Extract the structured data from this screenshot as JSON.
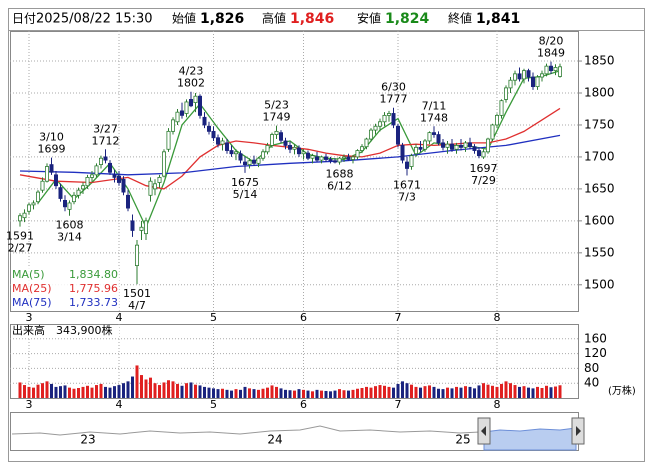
{
  "header": {
    "date_label": "日付",
    "date": "2025/08/22 15:30",
    "open_label": "始値",
    "open": "1,826",
    "high_label": "高値",
    "high": "1,846",
    "low_label": "安値",
    "low": "1,824",
    "close_label": "終値",
    "close": "1,841"
  },
  "chart_data": {
    "type": "candlestick",
    "up_color": "#2e7d32",
    "down_color": "#1a237e",
    "grid": true,
    "categories": [
      null,
      null,
      "3",
      null,
      null,
      null,
      null,
      null,
      null,
      null,
      null,
      null,
      null,
      null,
      null,
      null,
      null,
      null,
      null,
      null,
      null,
      null,
      "4",
      null,
      null,
      null,
      null,
      null,
      null,
      null,
      null,
      null,
      null,
      null,
      null,
      null,
      null,
      null,
      null,
      null,
      null,
      null,
      null,
      "5",
      null,
      null,
      null,
      null,
      null,
      null,
      null,
      null,
      null,
      null,
      null,
      null,
      null,
      null,
      null,
      null,
      null,
      null,
      null,
      "6",
      null,
      null,
      null,
      null,
      null,
      null,
      null,
      null,
      null,
      null,
      null,
      null,
      null,
      null,
      null,
      null,
      null,
      null,
      null,
      null,
      "7",
      null,
      null,
      null,
      null,
      null,
      null,
      null,
      null,
      null,
      null,
      null,
      null,
      null,
      null,
      null,
      null,
      null,
      null,
      null,
      null,
      null,
      "8",
      null,
      null,
      null,
      null,
      null,
      null,
      null,
      null,
      null,
      null,
      null,
      null,
      null,
      null
    ],
    "open": [
      1600,
      1605,
      1615,
      1625,
      1630,
      1648,
      1662,
      1688,
      1672,
      1652,
      1632,
      1618,
      1630,
      1640,
      1650,
      1655,
      1668,
      1672,
      1688,
      1700,
      1690,
      1672,
      1670,
      1665,
      1640,
      1600,
      1530,
      1585,
      1580,
      1640,
      1650,
      1660,
      1670,
      1712,
      1740,
      1755,
      1772,
      1768,
      1790,
      1785,
      1795,
      1762,
      1748,
      1740,
      1730,
      1720,
      1722,
      1710,
      1705,
      1705,
      1692,
      1688,
      1695,
      1690,
      1698,
      1708,
      1718,
      1735,
      1738,
      1725,
      1718,
      1712,
      1714,
      1705,
      1706,
      1698,
      1700,
      1695,
      1700,
      1696,
      1694,
      1692,
      1698,
      1700,
      1696,
      1700,
      1710,
      1716,
      1728,
      1742,
      1748,
      1755,
      1765,
      1768,
      1748,
      1718,
      1692,
      1685,
      1705,
      1715,
      1712,
      1725,
      1738,
      1735,
      1722,
      1715,
      1720,
      1712,
      1718,
      1715,
      1722,
      1716,
      1710,
      1700,
      1708,
      1728,
      1750,
      1765,
      1790,
      1808,
      1820,
      1830,
      1822,
      1835,
      1825,
      1810,
      1825,
      1830,
      1842,
      1835,
      1826
    ],
    "high": [
      1612,
      1618,
      1628,
      1632,
      1648,
      1668,
      1690,
      1699,
      1678,
      1658,
      1640,
      1632,
      1645,
      1652,
      1660,
      1672,
      1678,
      1690,
      1702,
      1712,
      1695,
      1680,
      1678,
      1670,
      1648,
      1610,
      1570,
      1600,
      1605,
      1668,
      1665,
      1672,
      1712,
      1745,
      1762,
      1775,
      1785,
      1790,
      1802,
      1800,
      1798,
      1770,
      1755,
      1748,
      1735,
      1730,
      1728,
      1718,
      1712,
      1710,
      1700,
      1698,
      1702,
      1700,
      1712,
      1722,
      1738,
      1749,
      1742,
      1730,
      1724,
      1720,
      1718,
      1712,
      1710,
      1705,
      1708,
      1702,
      1705,
      1700,
      1698,
      1700,
      1704,
      1705,
      1702,
      1712,
      1720,
      1730,
      1745,
      1752,
      1760,
      1770,
      1772,
      1777,
      1752,
      1722,
      1700,
      1705,
      1720,
      1725,
      1728,
      1740,
      1748,
      1740,
      1728,
      1725,
      1728,
      1722,
      1728,
      1725,
      1730,
      1720,
      1715,
      1712,
      1730,
      1752,
      1768,
      1790,
      1812,
      1825,
      1835,
      1840,
      1838,
      1838,
      1832,
      1828,
      1835,
      1846,
      1849,
      1845,
      1846
    ],
    "low": [
      1591,
      1598,
      1610,
      1618,
      1626,
      1644,
      1660,
      1672,
      1650,
      1630,
      1615,
      1608,
      1626,
      1635,
      1642,
      1650,
      1660,
      1668,
      1682,
      1690,
      1672,
      1660,
      1655,
      1640,
      1615,
      1575,
      1501,
      1570,
      1570,
      1630,
      1640,
      1652,
      1668,
      1708,
      1735,
      1750,
      1760,
      1762,
      1778,
      1770,
      1760,
      1745,
      1735,
      1725,
      1715,
      1710,
      1705,
      1700,
      1695,
      1690,
      1675,
      1682,
      1686,
      1684,
      1694,
      1704,
      1714,
      1728,
      1722,
      1712,
      1706,
      1704,
      1700,
      1696,
      1695,
      1690,
      1692,
      1690,
      1692,
      1690,
      1690,
      1688,
      1692,
      1694,
      1690,
      1696,
      1706,
      1712,
      1724,
      1735,
      1740,
      1748,
      1755,
      1745,
      1715,
      1690,
      1671,
      1680,
      1700,
      1708,
      1708,
      1720,
      1730,
      1718,
      1710,
      1705,
      1708,
      1705,
      1710,
      1708,
      1712,
      1705,
      1698,
      1697,
      1705,
      1725,
      1745,
      1760,
      1785,
      1800,
      1812,
      1818,
      1815,
      1818,
      1805,
      1805,
      1818,
      1826,
      1830,
      1828,
      1824
    ],
    "close": [
      1608,
      1612,
      1625,
      1628,
      1645,
      1662,
      1685,
      1676,
      1655,
      1635,
      1622,
      1628,
      1640,
      1648,
      1655,
      1668,
      1672,
      1686,
      1698,
      1695,
      1676,
      1668,
      1660,
      1645,
      1620,
      1585,
      1562,
      1590,
      1600,
      1662,
      1658,
      1668,
      1708,
      1740,
      1758,
      1770,
      1765,
      1786,
      1780,
      1795,
      1765,
      1750,
      1740,
      1730,
      1720,
      1725,
      1710,
      1705,
      1708,
      1695,
      1688,
      1694,
      1690,
      1698,
      1708,
      1718,
      1735,
      1740,
      1726,
      1718,
      1712,
      1715,
      1705,
      1708,
      1698,
      1702,
      1695,
      1700,
      1696,
      1694,
      1692,
      1698,
      1700,
      1696,
      1700,
      1710,
      1716,
      1728,
      1742,
      1748,
      1755,
      1765,
      1768,
      1750,
      1720,
      1695,
      1682,
      1702,
      1715,
      1712,
      1725,
      1738,
      1735,
      1722,
      1715,
      1720,
      1712,
      1718,
      1715,
      1722,
      1716,
      1710,
      1702,
      1708,
      1728,
      1750,
      1765,
      1788,
      1808,
      1820,
      1830,
      1822,
      1835,
      1825,
      1810,
      1825,
      1830,
      1842,
      1835,
      1840,
      1841
    ],
    "ylim": [
      1459,
      1897
    ],
    "yticks": [
      1500,
      1550,
      1600,
      1650,
      1700,
      1750,
      1800,
      1850
    ],
    "series": [
      {
        "name": "MA(5)",
        "color": "#3a9a3a",
        "last_label": "1,834.80",
        "x": [
          4,
          8,
          12,
          16,
          20,
          24,
          28,
          32,
          36,
          40,
          44,
          48,
          52,
          56,
          60,
          64,
          68,
          72,
          76,
          80,
          84,
          88,
          92,
          96,
          100,
          104,
          108,
          112,
          116,
          120
        ],
        "values": [
          1628,
          1665,
          1634,
          1660,
          1690,
          1650,
          1590,
          1660,
          1750,
          1783,
          1745,
          1710,
          1692,
          1718,
          1725,
          1704,
          1698,
          1696,
          1708,
          1742,
          1760,
          1702,
          1722,
          1718,
          1717,
          1712,
          1770,
          1823,
          1826,
          1834.8
        ]
      },
      {
        "name": "MA(25)",
        "color": "#e03030",
        "last_label": "1,775.96",
        "x": [
          0,
          8,
          16,
          24,
          28,
          32,
          36,
          40,
          44,
          48,
          52,
          56,
          60,
          64,
          68,
          72,
          76,
          80,
          84,
          88,
          92,
          96,
          100,
          104,
          108,
          112,
          116,
          120
        ],
        "values": [
          1672,
          1662,
          1660,
          1668,
          1655,
          1650,
          1670,
          1700,
          1718,
          1725,
          1722,
          1718,
          1715,
          1712,
          1706,
          1702,
          1700,
          1706,
          1718,
          1720,
          1718,
          1720,
          1722,
          1722,
          1728,
          1740,
          1758,
          1775.96
        ]
      },
      {
        "name": "MA(75)",
        "color": "#2030c0",
        "last_label": "1,733.73",
        "x": [
          0,
          12,
          24,
          36,
          48,
          60,
          72,
          84,
          96,
          108,
          120
        ],
        "values": [
          1678,
          1676,
          1672,
          1675,
          1685,
          1690,
          1694,
          1700,
          1710,
          1718,
          1733.73
        ]
      }
    ],
    "annotations": [
      {
        "at": 0,
        "date": "2/27",
        "price": 1591
      },
      {
        "at": 7,
        "date": "3/10",
        "price": 1699
      },
      {
        "at": 11,
        "date": "3/14",
        "price": 1608
      },
      {
        "at": 19,
        "date": "3/27",
        "price": 1712
      },
      {
        "at": 26,
        "date": "4/7",
        "price": 1501
      },
      {
        "at": 38,
        "date": "4/23",
        "price": 1802
      },
      {
        "at": 50,
        "date": "5/14",
        "price": 1675
      },
      {
        "at": 57,
        "date": "5/23",
        "price": 1749
      },
      {
        "at": 71,
        "date": "6/12",
        "price": 1688
      },
      {
        "at": 83,
        "date": "6/30",
        "price": 1777
      },
      {
        "at": 86,
        "date": "7/3",
        "price": 1671
      },
      {
        "at": 92,
        "date": "7/11",
        "price": 1748
      },
      {
        "at": 103,
        "date": "7/29",
        "price": 1697
      },
      {
        "at": 118,
        "date": "8/20",
        "price": 1849
      }
    ],
    "volume": {
      "label": "出来高",
      "latest_label": "343,900株",
      "unit": "(万株)",
      "up_color": "#e02020",
      "down_color": "#1a237e",
      "ylim": [
        0,
        200
      ],
      "yticks": [
        40,
        80,
        120,
        160
      ],
      "values": [
        42,
        35,
        30,
        28,
        36,
        40,
        45,
        38,
        30,
        32,
        34,
        28,
        25,
        27,
        30,
        33,
        28,
        35,
        38,
        30,
        28,
        32,
        35,
        40,
        45,
        58,
        88,
        62,
        50,
        55,
        40,
        35,
        42,
        48,
        45,
        38,
        33,
        40,
        42,
        36,
        34,
        30,
        28,
        26,
        24,
        25,
        22,
        20,
        24,
        22,
        30,
        26,
        24,
        22,
        25,
        28,
        34,
        30,
        26,
        22,
        21,
        20,
        24,
        22,
        20,
        18,
        22,
        20,
        19,
        18,
        20,
        24,
        21,
        20,
        22,
        25,
        27,
        30,
        28,
        32,
        35,
        33,
        30,
        28,
        38,
        45,
        40,
        36,
        30,
        28,
        32,
        34,
        30,
        25,
        24,
        28,
        26,
        30,
        28,
        32,
        30,
        26,
        34,
        40,
        36,
        33,
        30,
        38,
        45,
        40,
        35,
        30,
        32,
        28,
        26,
        30,
        27,
        33,
        29,
        31,
        34.39
      ]
    }
  },
  "navigator": {
    "labels": [
      "23",
      "24",
      "25"
    ]
  }
}
